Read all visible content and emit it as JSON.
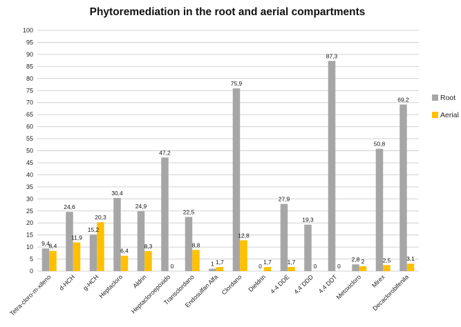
{
  "chart_data": {
    "type": "bar",
    "title": "Phytoremediation in the root and aerial compartments",
    "xlabel": "",
    "ylabel": "",
    "ylim": [
      0,
      100
    ],
    "ytick_step": 5,
    "grid": true,
    "legend_position": "right",
    "categories": [
      "Tetra-cloro-m-xileno",
      "d-HCH",
      "g-HCH",
      "Heptacloro",
      "Aldrin",
      "Heptacloroepoxido",
      "Transclordano",
      "Endosulfan Alfa",
      "Clordano",
      "Dieldrin",
      "4-4 DDE",
      "4,4´DDD",
      "4,4 DDT",
      "Metoxicloro",
      "Mirex",
      "Decaclorobifenila"
    ],
    "series": [
      {
        "name": "Root",
        "color": "#a6a6a6",
        "values": [
          9.4,
          24.6,
          15.2,
          30.4,
          24.9,
          47.2,
          22.5,
          1,
          75.9,
          0,
          27.9,
          19.3,
          87.3,
          2.8,
          50.8,
          69.2
        ],
        "labels": [
          "9,4",
          "24,6",
          "15,2",
          "30,4",
          "24,9",
          "47,2",
          "22,5",
          "1",
          "75,9",
          "0",
          "27,9",
          "19,3",
          "87,3",
          "2,8",
          "50,8",
          "69,2"
        ]
      },
      {
        "name": "Aerial",
        "color": "#ffc000",
        "values": [
          8.4,
          11.9,
          20.3,
          6.4,
          8.3,
          0,
          8.8,
          1.7,
          12.8,
          1.7,
          1.7,
          0,
          0,
          2,
          2.5,
          3.1
        ],
        "labels": [
          "8,4",
          "11,9",
          "20,3",
          "6,4",
          "8,3",
          "0",
          "8,8",
          "1,7",
          "12,8",
          "1,7",
          "1,7",
          "0",
          "0",
          "2",
          "2,5",
          "3,1"
        ]
      }
    ]
  }
}
